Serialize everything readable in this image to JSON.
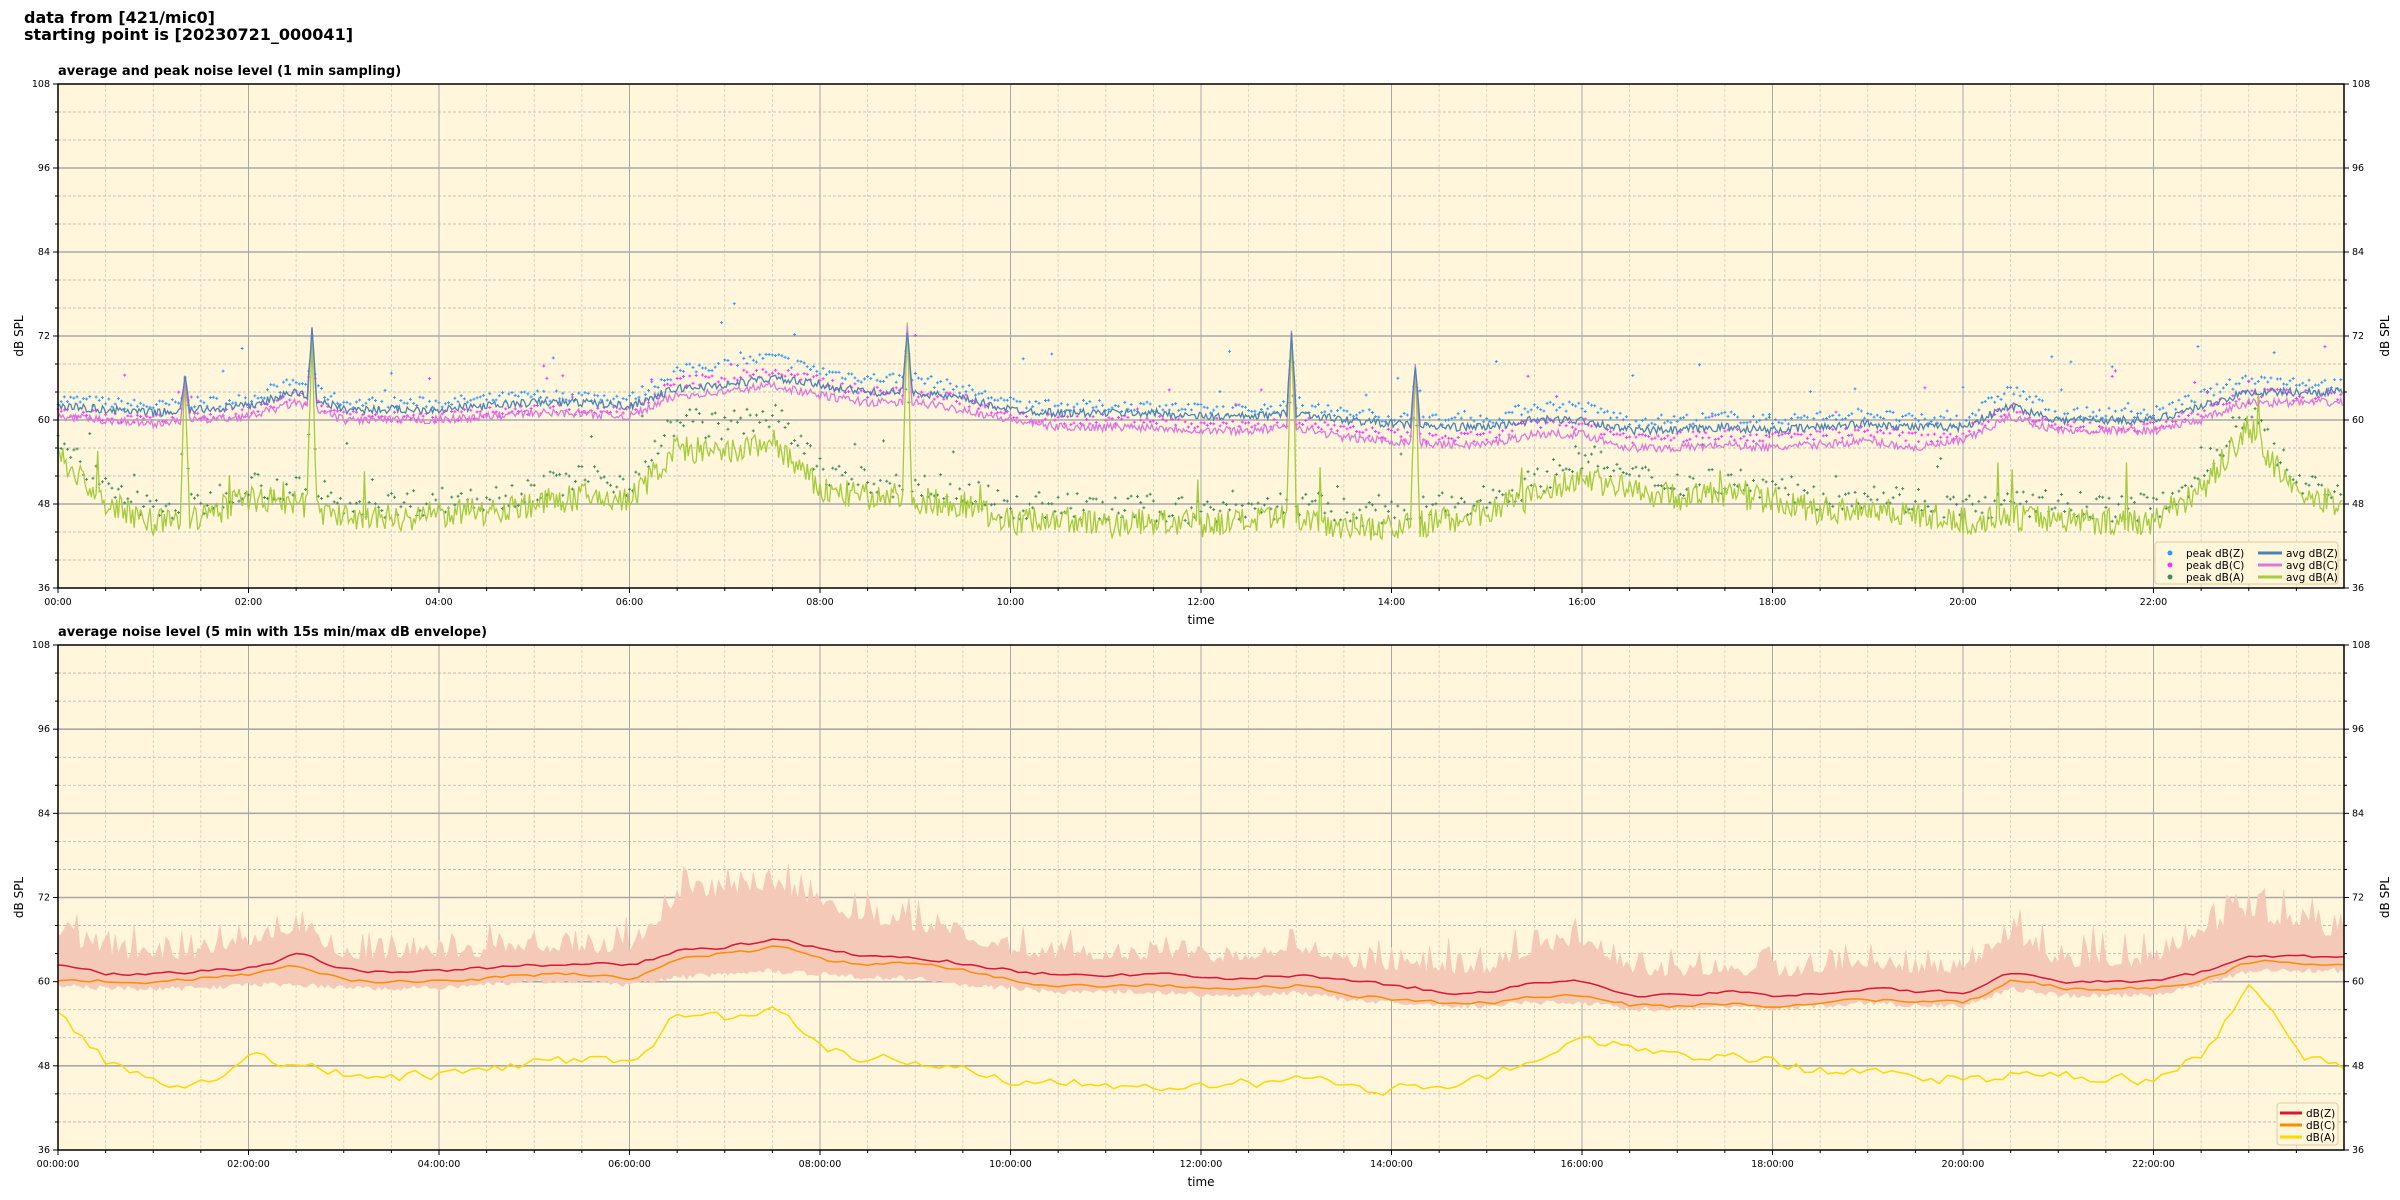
{
  "header": {
    "line1": "data from [421/mic0]",
    "line2": "starting point is [20230721_000041]"
  },
  "chart_data": [
    {
      "type": "line",
      "title": "average and peak noise level (1 min sampling)",
      "xlabel": "time",
      "ylabel": "dB SPL",
      "xlim_hours": [
        0,
        24
      ],
      "ylim": [
        36,
        108
      ],
      "y_ticks": [
        "36",
        "48",
        "60",
        "72",
        "84",
        "96",
        "108"
      ],
      "x_ticks": [
        "00:00",
        "02:00",
        "04:00",
        "06:00",
        "08:00",
        "10:00",
        "12:00",
        "14:00",
        "16:00",
        "18:00",
        "20:00",
        "22:00"
      ],
      "grid": true,
      "legend_position": "lower-right",
      "background": "#fff6dc",
      "x_hours": [
        0,
        0.5,
        1,
        1.5,
        2,
        2.5,
        3,
        3.5,
        4,
        4.5,
        5,
        5.5,
        6,
        6.5,
        7,
        7.5,
        8,
        8.5,
        9,
        9.5,
        10,
        10.5,
        11,
        11.5,
        12,
        12.5,
        13,
        13.5,
        14,
        14.5,
        15,
        15.5,
        16,
        16.5,
        17,
        17.5,
        18,
        18.5,
        19,
        19.5,
        20,
        20.5,
        21,
        21.5,
        22,
        22.5,
        23,
        23.5,
        24
      ],
      "series": [
        {
          "name": "peak dB(Z)",
          "kind": "points",
          "color": "#3399ff",
          "values": [
            63,
            62.5,
            62,
            62.5,
            63,
            65.5,
            62.5,
            62.5,
            62.5,
            63,
            63.5,
            63.5,
            63,
            67,
            68,
            69,
            67,
            66,
            66,
            64.5,
            62.5,
            62,
            62,
            62,
            61.5,
            61.5,
            62,
            61,
            60.5,
            60,
            60,
            62,
            62,
            60,
            60,
            60.5,
            60,
            60.5,
            61,
            60,
            60,
            64.5,
            61,
            61,
            61,
            63.5,
            66,
            65.5,
            65
          ]
        },
        {
          "name": "peak dB(C)",
          "kind": "points",
          "color": "#ff33ff",
          "values": [
            61,
            60.5,
            60,
            60.5,
            61,
            63.5,
            60.5,
            60.5,
            60.5,
            61,
            61.5,
            61.5,
            61,
            65.5,
            66,
            67,
            65.5,
            64,
            64,
            63,
            60.5,
            60,
            60,
            60,
            59.5,
            59.5,
            60,
            58.5,
            58,
            57.5,
            57.5,
            59.5,
            59.5,
            57.5,
            57.5,
            58,
            57.5,
            58,
            58.5,
            57.5,
            58,
            62,
            59,
            59,
            59,
            61,
            64,
            63.5,
            63.5
          ]
        },
        {
          "name": "peak dB(A)",
          "kind": "points",
          "color": "#3e8e5a",
          "values": [
            58,
            50,
            47.5,
            48,
            51,
            50,
            48,
            48,
            48.5,
            49,
            50,
            52,
            51,
            60,
            59,
            61,
            53,
            51,
            50.5,
            50,
            47.5,
            48,
            47,
            47.5,
            47,
            47.5,
            48,
            47,
            46.5,
            47.5,
            49,
            51,
            55,
            52,
            51,
            51.5,
            50.5,
            49,
            49.5,
            48.5,
            47.5,
            48,
            48,
            47.5,
            47.5,
            52,
            62,
            51,
            50
          ]
        },
        {
          "name": "avg dB(Z)",
          "kind": "line",
          "color": "#4b84b4",
          "values": [
            62,
            61.5,
            61,
            61.5,
            62,
            64,
            61.5,
            61.5,
            61.5,
            62,
            62.5,
            62.5,
            62,
            64.5,
            65,
            66,
            65,
            64,
            64,
            63,
            61.5,
            61,
            61,
            61,
            60.5,
            60.5,
            61,
            60,
            59.5,
            59,
            59,
            60,
            60,
            58.5,
            58.5,
            59,
            58.5,
            59,
            59.5,
            59,
            59,
            62,
            60,
            60,
            60,
            62,
            64,
            64,
            64
          ]
        },
        {
          "name": "avg dB(C)",
          "kind": "line",
          "color": "#dd77dd",
          "values": [
            60.5,
            60,
            59.5,
            60,
            60.5,
            62.5,
            60,
            60,
            60,
            60.5,
            61,
            61,
            60.5,
            63.5,
            64,
            65,
            63.5,
            62.5,
            62.5,
            61.5,
            60,
            59,
            59,
            59,
            58.5,
            58.5,
            59,
            57.5,
            57,
            56.5,
            56.5,
            58,
            58,
            56,
            56,
            56.5,
            56,
            56.5,
            57,
            56,
            57,
            60.5,
            58.5,
            58.5,
            58.5,
            60,
            62.5,
            62.5,
            62.5
          ]
        },
        {
          "name": "avg dB(A)",
          "kind": "line",
          "color": "#a4cc3c",
          "values": [
            55,
            48,
            45.5,
            46,
            49,
            48,
            46,
            46,
            46.5,
            47,
            48,
            49,
            48.5,
            56,
            55,
            57,
            50,
            49,
            48.5,
            48,
            45.5,
            46,
            45,
            45.5,
            45,
            45.5,
            46,
            45,
            44.5,
            45.5,
            47,
            49,
            52,
            50,
            49,
            49.5,
            48.5,
            47,
            47.5,
            46.5,
            45.5,
            46,
            46,
            45.5,
            45.5,
            50,
            59,
            49,
            48
          ]
        }
      ],
      "spikes": [
        {
          "time": "01:20",
          "series": "avg dB(Z)",
          "value": 66
        },
        {
          "time": "02:40",
          "series": "avg dB(Z)",
          "value": 73
        },
        {
          "time": "08:55",
          "series": "avg dB(Z)",
          "value": 73
        },
        {
          "time": "12:57",
          "series": "avg dB(Z)",
          "value": 73
        },
        {
          "time": "14:15",
          "series": "avg dB(Z)",
          "value": 68
        }
      ]
    },
    {
      "type": "line",
      "title": "average noise level (5 min with 15s min/max dB envelope)",
      "xlabel": "time",
      "ylabel": "dB SPL",
      "xlim_hours": [
        0,
        24
      ],
      "ylim": [
        36,
        108
      ],
      "y_ticks": [
        "36",
        "48",
        "60",
        "72",
        "84",
        "96",
        "108"
      ],
      "x_ticks": [
        "00:00:00",
        "02:00:00",
        "04:00:00",
        "06:00:00",
        "08:00:00",
        "10:00:00",
        "12:00:00",
        "14:00:00",
        "16:00:00",
        "18:00:00",
        "20:00:00",
        "22:00:00"
      ],
      "grid": true,
      "legend_position": "lower-right",
      "background": "#fff6dc",
      "envelope_color": "#f5c9b8",
      "x_hours": [
        0,
        0.5,
        1,
        1.5,
        2,
        2.5,
        3,
        3.5,
        4,
        4.5,
        5,
        5.5,
        6,
        6.5,
        7,
        7.5,
        8,
        8.5,
        9,
        9.5,
        10,
        10.5,
        11,
        11.5,
        12,
        12.5,
        13,
        13.5,
        14,
        14.5,
        15,
        15.5,
        16,
        16.5,
        17,
        17.5,
        18,
        18.5,
        19,
        19.5,
        20,
        20.5,
        21,
        21.5,
        22,
        22.5,
        23,
        23.5,
        24
      ],
      "envelope_max": [
        66,
        63,
        63,
        63,
        65,
        67,
        63,
        63,
        63,
        63.5,
        64,
        64,
        64,
        71,
        72,
        73,
        70,
        68,
        67,
        66,
        63.5,
        63,
        63,
        63,
        62.5,
        63,
        64,
        62,
        61.5,
        61,
        61,
        64,
        65,
        61,
        60.5,
        61,
        60.5,
        61,
        62,
        61,
        61,
        66,
        62,
        62,
        62,
        66,
        69,
        67,
        66
      ],
      "envelope_min": [
        60,
        59.5,
        59.5,
        59.5,
        60,
        60,
        59.5,
        59.5,
        59.5,
        60,
        60.5,
        60.5,
        60,
        61,
        61.5,
        62,
        61.5,
        61,
        61,
        60,
        59.5,
        59,
        59,
        59,
        58.5,
        58.5,
        59,
        58,
        57.5,
        57,
        57,
        57.5,
        57.5,
        56.5,
        56.5,
        57,
        56.5,
        57,
        57.5,
        57,
        57,
        59.5,
        58.5,
        58.5,
        58.5,
        60,
        62,
        62,
        62
      ],
      "series": [
        {
          "name": "dB(Z)",
          "color": "#dc1436",
          "values": [
            62,
            61,
            61,
            61.5,
            62,
            64,
            61.5,
            61.5,
            61.5,
            62,
            62.5,
            62.5,
            62.5,
            64.5,
            65,
            66,
            64.5,
            63.5,
            63.5,
            62.5,
            61.5,
            61,
            61,
            61,
            60.5,
            60.5,
            61,
            60,
            59.5,
            58.5,
            58.5,
            60,
            60,
            58,
            58,
            58.5,
            58,
            58.5,
            59,
            58.5,
            58.5,
            61.5,
            60,
            60,
            60,
            61.5,
            64,
            63.5,
            63.5
          ]
        },
        {
          "name": "dB(C)",
          "color": "#ff8c00",
          "values": [
            60.5,
            60,
            60,
            60.5,
            61,
            62.5,
            60,
            60,
            60,
            60.5,
            61,
            61,
            60.5,
            63.5,
            64,
            65,
            63,
            62.5,
            62.5,
            61.5,
            60,
            59.5,
            59.5,
            59.5,
            59,
            59,
            59.5,
            58,
            57.5,
            57,
            57,
            58,
            58,
            56.5,
            56.5,
            57,
            56.5,
            57,
            57.5,
            57,
            57,
            60.5,
            59,
            59,
            59,
            60.5,
            63,
            62.5,
            62.5
          ]
        },
        {
          "name": "dB(A)",
          "color": "#ffd700",
          "values": [
            55,
            48,
            45.5,
            46,
            49.5,
            48,
            46.5,
            46.5,
            46.5,
            47.5,
            48.5,
            49,
            48.5,
            56,
            55,
            57,
            50,
            49,
            48.5,
            48,
            45.5,
            46,
            45.5,
            45.5,
            45,
            45.5,
            46,
            45,
            44.5,
            45.5,
            47,
            49,
            52,
            50,
            49,
            49.5,
            48.5,
            47,
            47.5,
            46.5,
            46,
            46.5,
            46.5,
            46,
            46,
            50,
            60,
            49,
            48
          ]
        }
      ]
    }
  ]
}
